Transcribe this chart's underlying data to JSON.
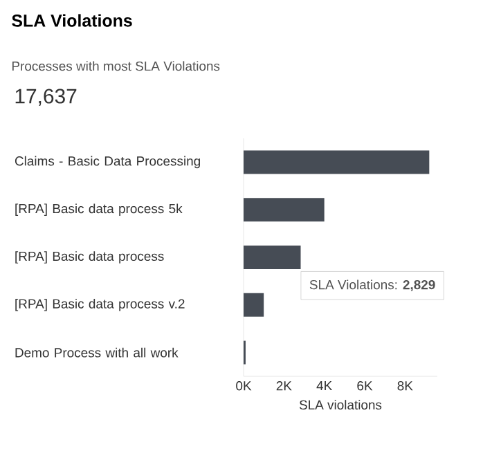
{
  "chart_data": {
    "type": "bar",
    "orientation": "horizontal",
    "title": "SLA Violations",
    "subtitle": "Processes with most SLA Violations",
    "annotations": [
      "17,637",
      {
        "text": "SLA Violations: **2,829**",
        "x": 2829,
        "y": "[RPA] Basic data process"
      }
    ],
    "categories": [
      "Claims - Basic Data Processing",
      "[RPA] Basic data process 5k",
      "[RPA] Basic data process",
      "[RPA] Basic data process v.2",
      "Demo Process with all work"
    ],
    "values": [
      9200,
      4000,
      2829,
      1000,
      100
    ],
    "color": "#464c55",
    "xlim": [
      0,
      9600
    ],
    "xticks": [
      {
        "value": 0,
        "label": "0K"
      },
      {
        "value": 2000,
        "label": "2K"
      },
      {
        "value": 4000,
        "label": "4K"
      },
      {
        "value": 6000,
        "label": "6K"
      },
      {
        "value": 8000,
        "label": "8K"
      }
    ],
    "xlabel": "SLA violations"
  }
}
